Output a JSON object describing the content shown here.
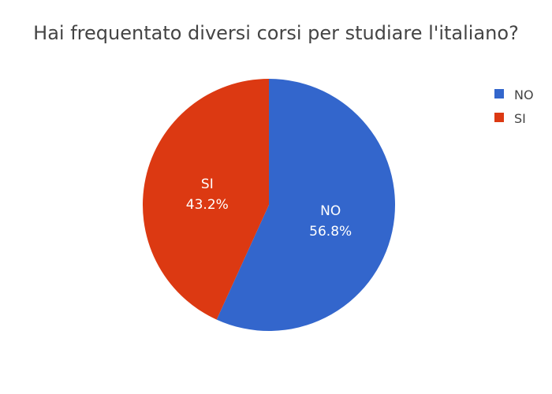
{
  "chart_data": {
    "type": "pie",
    "title": "Hai frequentato diversi corsi per studiare l'italiano?",
    "slices": [
      {
        "label": "NO",
        "value": 56.8,
        "percent_text": "56.8%",
        "color": "#3366cc"
      },
      {
        "label": "SI",
        "value": 43.2,
        "percent_text": "43.2%",
        "color": "#dc3912"
      }
    ],
    "legend_position": "top-right",
    "direction": "clockwise",
    "start": "top"
  }
}
